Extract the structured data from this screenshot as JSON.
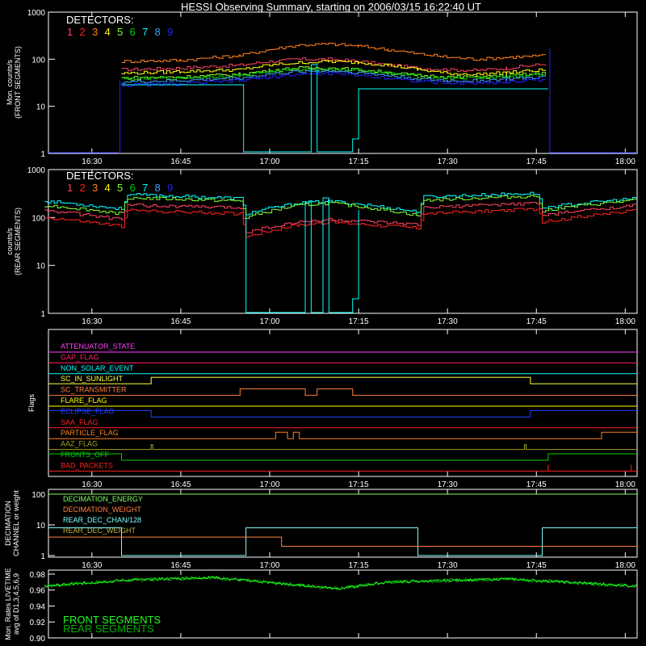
{
  "title": "HESSI Observing Summary, starting on 2006/03/15 16:22:40 UT",
  "time_ticks": [
    "16:30",
    "16:45",
    "17:00",
    "17:15",
    "17:30",
    "17:45",
    "18:00"
  ],
  "colors": {
    "d1": "#ff4060",
    "d2": "#ff2020",
    "d3": "#ff8020",
    "d4": "#ffff00",
    "d5": "#80ff30",
    "d6": "#00d000",
    "d7": "#00ffff",
    "d8": "#40a0ff",
    "d9": "#2020ff"
  },
  "panel1": {
    "detectors_label": "DETECTORS:",
    "detector_numbers": [
      "1",
      "2",
      "3",
      "4",
      "5",
      "6",
      "7",
      "8",
      "9"
    ],
    "ylabel_1": "Mon. counts/s",
    "ylabel_2": "(FRONT SEGMENTS)",
    "yticks": [
      "1000",
      "100",
      "10",
      "1"
    ]
  },
  "panel2": {
    "detectors_label": "DETECTORS:",
    "detector_numbers": [
      "1",
      "2",
      "3",
      "4",
      "5",
      "6",
      "7",
      "8",
      "9"
    ],
    "ylabel_1": "counts/s",
    "ylabel_2": "(REAR SEGMENTS)",
    "yticks": [
      "1000",
      "100",
      "10",
      "1"
    ]
  },
  "panel3": {
    "ylabel": "Flags",
    "flags": [
      {
        "name": "ATTENUATOR_STATE",
        "color": "#ff40ff"
      },
      {
        "name": "GAP_FLAG",
        "color": "#ff2060"
      },
      {
        "name": "NON_SOLAR_EVENT",
        "color": "#00ffff"
      },
      {
        "name": "SC_IN_SUNLIGHT",
        "color": "#ffff40"
      },
      {
        "name": "SC_TRANSMITTER",
        "color": "#ff8040"
      },
      {
        "name": "FLARE_FLAG",
        "color": "#ffff00"
      },
      {
        "name": "ECLIPSE_FLAG",
        "color": "#2040ff"
      },
      {
        "name": "SAA_FLAG",
        "color": "#ff2020"
      },
      {
        "name": "PARTICLE_FLAG",
        "color": "#ff8020"
      },
      {
        "name": "AAZ_FLAG",
        "color": "#a0a020"
      },
      {
        "name": "FRONTS_OFF",
        "color": "#00d000"
      },
      {
        "name": "BAD_PACKETS",
        "color": "#ff2020"
      }
    ]
  },
  "panel4": {
    "ylabel_1": "DECIMATION",
    "ylabel_2": "CHANNEL or weight",
    "yticks": [
      "100",
      "10",
      "1"
    ],
    "legend": [
      {
        "name": "DECIMATION_ENERGY",
        "color": "#80ff60"
      },
      {
        "name": "DECIMATION_WEIGHT",
        "color": "#ff8040"
      },
      {
        "name": "REAR_DEC_CHAN/128",
        "color": "#80ffff"
      },
      {
        "name": "REAR_DEC_WEIGHT",
        "color": "#c0b040"
      }
    ]
  },
  "panel5": {
    "ylabel_1": "Mon. Rates LIVETIME",
    "ylabel_2": "avg of D1,3,4,5,6,9",
    "yticks": [
      "0.98",
      "0.96",
      "0.94",
      "0.92",
      "0.90"
    ],
    "legend_front": "FRONT SEGMENTS",
    "legend_rear": "REAR SEGMENTS",
    "legend_front_color": "#20ff20",
    "legend_rear_color": "#00b000"
  },
  "chart_data": {
    "type": "line",
    "x_unit": "UT",
    "x_range": [
      "16:22:40",
      "18:02:00"
    ],
    "front_rates": {
      "ylim": [
        1,
        1000
      ],
      "log": true,
      "t": [
        "16:35",
        "16:45",
        "16:55",
        "17:00",
        "17:05",
        "17:10",
        "17:15",
        "17:20",
        "17:25",
        "17:30",
        "17:35",
        "17:40",
        "17:47"
      ],
      "series": [
        {
          "name": "1",
          "values": [
            60,
            65,
            75,
            90,
            100,
            100,
            90,
            75,
            65,
            60,
            58,
            65,
            80
          ]
        },
        {
          "name": "3",
          "values": [
            90,
            95,
            120,
            160,
            200,
            210,
            190,
            160,
            130,
            110,
            100,
            110,
            120
          ]
        },
        {
          "name": "4",
          "values": [
            50,
            55,
            60,
            75,
            85,
            90,
            85,
            75,
            60,
            50,
            48,
            52,
            60
          ]
        },
        {
          "name": "5",
          "values": [
            40,
            42,
            48,
            58,
            65,
            65,
            60,
            52,
            45,
            42,
            42,
            45,
            50
          ]
        },
        {
          "name": "6",
          "values": [
            38,
            40,
            45,
            55,
            60,
            62,
            58,
            50,
            43,
            40,
            40,
            42,
            48
          ]
        },
        {
          "name": "8",
          "values": [
            33,
            35,
            40,
            48,
            55,
            57,
            52,
            45,
            38,
            35,
            35,
            38,
            42
          ]
        },
        {
          "name": "9",
          "values": [
            28,
            30,
            35,
            42,
            48,
            50,
            46,
            40,
            34,
            31,
            31,
            33,
            38
          ]
        }
      ]
    },
    "rear_rates": {
      "ylim": [
        1,
        1000
      ],
      "log": true,
      "t": [
        "16:22",
        "16:35",
        "16:36",
        "16:55",
        "16:56",
        "17:05",
        "17:10",
        "17:25",
        "17:26",
        "17:45",
        "17:46",
        "18:02"
      ],
      "series": [
        {
          "name": "7",
          "values": [
            220,
            150,
            300,
            250,
            120,
            200,
            220,
            130,
            270,
            320,
            160,
            250
          ]
        },
        {
          "name": "5",
          "values": [
            180,
            120,
            260,
            220,
            100,
            180,
            200,
            110,
            230,
            280,
            140,
            230
          ]
        },
        {
          "name": "1",
          "values": [
            140,
            90,
            180,
            160,
            50,
            80,
            90,
            70,
            160,
            200,
            110,
            180
          ]
        },
        {
          "name": "2",
          "values": [
            100,
            65,
            140,
            120,
            40,
            70,
            80,
            60,
            120,
            150,
            80,
            140
          ]
        }
      ]
    },
    "decimation": {
      "ylim": [
        1,
        100
      ],
      "log": true,
      "series": [
        {
          "name": "DECIMATION_ENERGY",
          "values": [
            100,
            100
          ]
        },
        {
          "name": "REAR_DEC_CHAN/128",
          "values": [
            8,
            1,
            8,
            1,
            8,
            1
          ]
        },
        {
          "name": "DECIMATION_WEIGHT",
          "values": [
            4,
            4,
            2,
            2
          ]
        }
      ]
    },
    "livetime": {
      "ylim": [
        0.9,
        0.98
      ],
      "t": [
        "16:22",
        "16:35",
        "16:50",
        "17:05",
        "17:12",
        "17:20",
        "17:40",
        "18:02"
      ],
      "values": [
        0.965,
        0.972,
        0.976,
        0.966,
        0.962,
        0.97,
        0.974,
        0.965
      ]
    }
  }
}
